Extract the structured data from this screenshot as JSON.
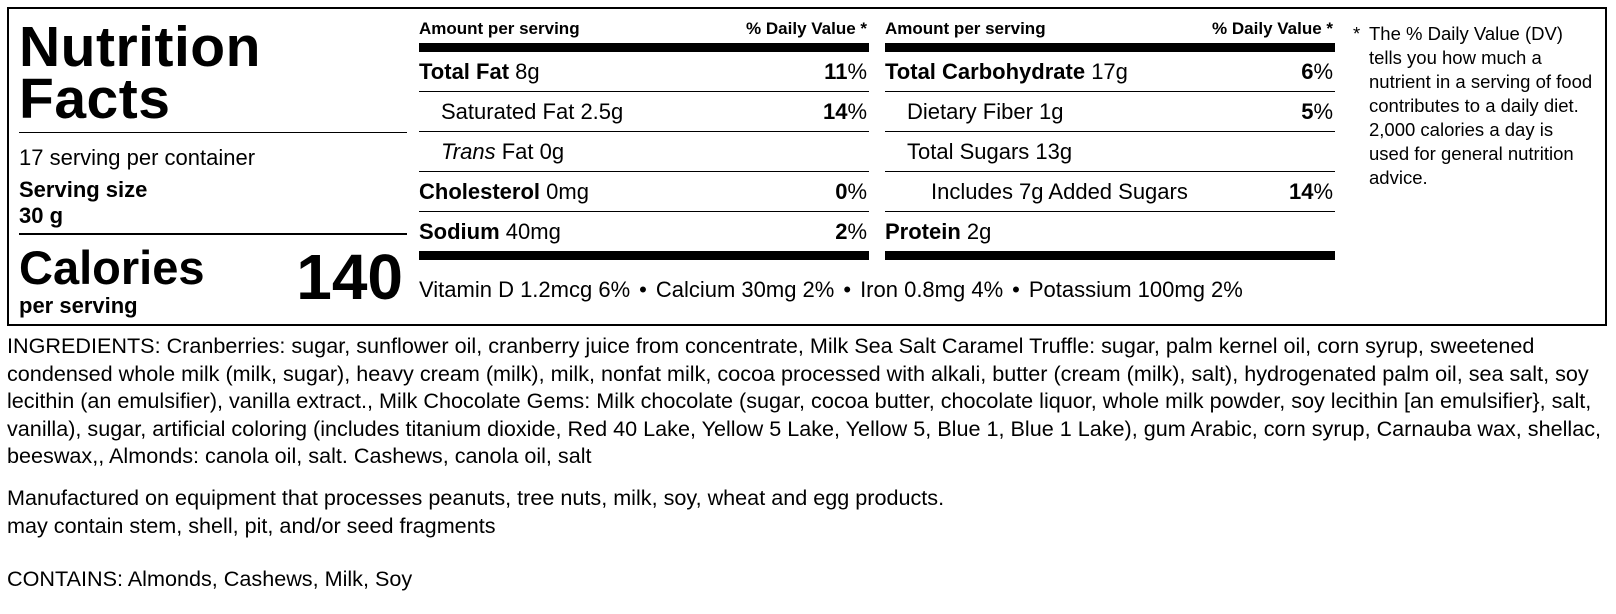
{
  "label": {
    "title_line1": "Nutrition",
    "title_line2": "Facts",
    "servings_per_container": "17 serving per container",
    "serving_size_label": "Serving size",
    "serving_size_value": "30 g",
    "calories_label": "Calories",
    "per_serving": "per serving",
    "calories_value": "140"
  },
  "columns": [
    {
      "header_left": "Amount per serving",
      "header_right": "% Daily Value *",
      "rows": [
        {
          "name": "Total Fat",
          "amount": "8g",
          "pct": "11",
          "pct_sign": "%"
        },
        {
          "name": "Saturated Fat",
          "amount": "2.5g",
          "pct": "14",
          "pct_sign": "%"
        },
        {
          "name": "Trans",
          "name_rest": "Fat",
          "amount": "0g"
        },
        {
          "name": "Cholesterol",
          "amount": "0mg",
          "pct": "0",
          "pct_sign": "%"
        },
        {
          "name": "Sodium",
          "amount": "40mg",
          "pct": "2",
          "pct_sign": "%"
        }
      ]
    },
    {
      "header_left": "Amount per serving",
      "header_right": "% Daily Value *",
      "rows": [
        {
          "name": "Total Carbohydrate",
          "amount": "17g",
          "pct": "6",
          "pct_sign": "%"
        },
        {
          "name": "Dietary Fiber",
          "amount": "1g",
          "pct": "5",
          "pct_sign": "%"
        },
        {
          "name": "Total Sugars",
          "amount": "13g"
        },
        {
          "name": "Includes 7g Added Sugars",
          "pct": "14",
          "pct_sign": "%"
        },
        {
          "name": "Protein",
          "amount": "2g"
        }
      ]
    }
  ],
  "vitamins": [
    "Vitamin D 1.2mcg 6%",
    "Calcium 30mg 2%",
    "Iron 0.8mg 4%",
    "Potassium 100mg 2%"
  ],
  "vitamin_separator": "•",
  "footnote": {
    "star": "*",
    "text": "The % Daily Value (DV) tells you how much a nutrient in a serving of food contributes to a daily diet. 2,000 calories a day is used for general nutrition advice."
  },
  "ingredients": "INGREDIENTS: Cranberries: sugar, sunflower oil, cranberry juice from concentrate, Milk Sea Salt Caramel Truffle: sugar, palm kernel oil, corn syrup, sweetened condensed whole milk (milk, sugar), heavy cream (milk), milk, nonfat milk, cocoa processed with alkali, butter (cream (milk), salt), hydrogenated palm oil, sea salt, soy lecithin (an emulsifier), vanilla extract., Milk Chocolate Gems: Milk chocolate (sugar, cocoa butter, chocolate liquor, whole milk powder, soy lecithin [an emulsifier}, salt, vanilla), sugar, artificial coloring (includes titanium dioxide, Red 40 Lake, Yellow 5 Lake, Yellow 5, Blue 1, Blue 1 Lake), gum  Arabic, corn syrup, Carnauba wax, shellac, beeswax,, Almonds: canola oil, salt. Cashews, canola oil, salt",
  "warning_line1": "Manufactured on equipment that processes peanuts, tree nuts, milk, soy, wheat and egg products.",
  "warning_line2": "may contain stem, shell, pit, and/or seed fragments",
  "contains": "CONTAINS: Almonds, Cashews, Milk, Soy"
}
